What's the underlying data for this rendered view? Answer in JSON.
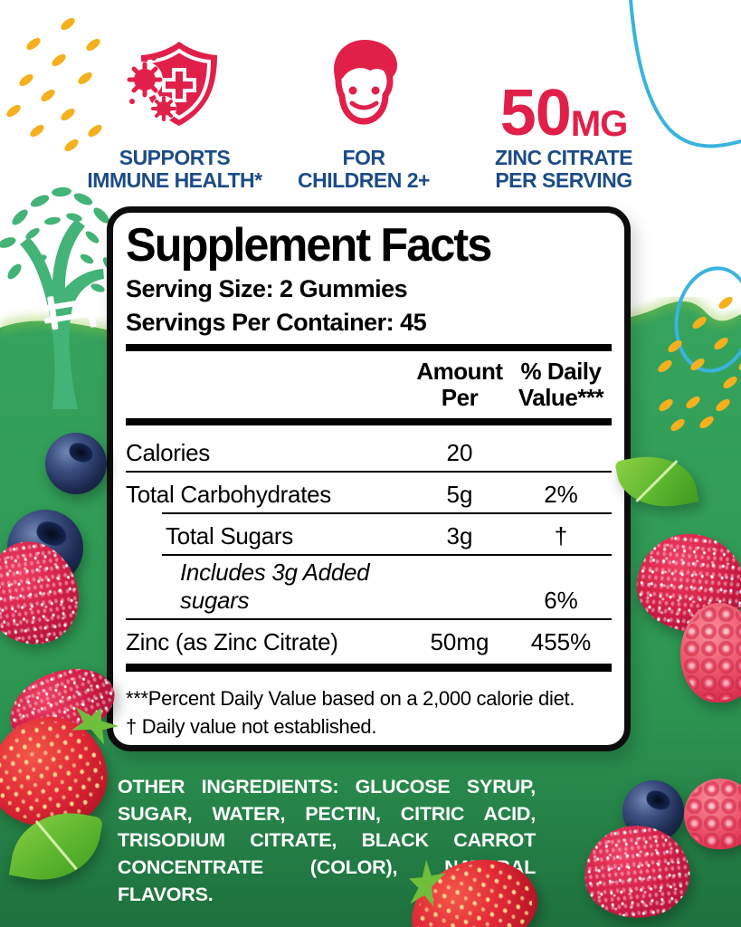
{
  "product_banner": {
    "badges": [
      {
        "icon": "immune-shield-icon",
        "line1": "SUPPORTS",
        "line2": "IMMUNE HEALTH*"
      },
      {
        "icon": "child-face-icon",
        "line1": "FOR",
        "line2": "CHILDREN 2+"
      },
      {
        "icon": "dose-text",
        "dose_value": "50",
        "dose_unit": "MG",
        "line1": "ZINC CITRATE",
        "line2": "PER SERVING"
      }
    ]
  },
  "supplement_facts": {
    "title": "Supplement Facts",
    "serving_size": "Serving Size: 2 Gummies",
    "servings_per_container": "Servings Per Container: 45",
    "columns": {
      "amount": "Amount Per",
      "daily_value": "% Daily Value***"
    },
    "rows": [
      {
        "name": "Calories",
        "amount": "20",
        "daily_value": "",
        "indent": 0,
        "italic": false,
        "rule_below": "full"
      },
      {
        "name": "Total Carbohydrates",
        "amount": "5g",
        "daily_value": "2%",
        "indent": 0,
        "italic": false,
        "rule_below": "indented"
      },
      {
        "name": "Total Sugars",
        "amount": "3g",
        "daily_value": "†",
        "indent": 1,
        "italic": false,
        "rule_below": "indented"
      },
      {
        "name": "Includes 3g Added sugars",
        "amount": "",
        "daily_value": "6%",
        "indent": 2,
        "italic": true,
        "rule_below": "full"
      },
      {
        "name": "Zinc (as Zinc Citrate)",
        "amount": "50mg",
        "daily_value": "455%",
        "indent": 0,
        "italic": false,
        "rule_below": "none"
      }
    ],
    "footnotes": [
      "***Percent Daily Value based on a 2,000 calorie diet.",
      "† Daily value not established."
    ]
  },
  "other_ingredients": {
    "label": "OTHER INGREDIENTS:",
    "text": " GLUCOSE SYRUP, SUGAR, WATER, PECTIN, CITRIC ACID, TRISODIUM CITRATE, BLACK CARROT CONCENTRATE (COLOR), NATURAL FLAVORS."
  },
  "colors": {
    "accent_red": "#E1204A",
    "navy_blue": "#1C4C87",
    "background_green": "#2F9B55",
    "hill_green": "#43B377",
    "dot_yellow": "#F5B01E",
    "line_blue": "#39B4DE",
    "panel_border_black": "#0D0D0D",
    "text_white": "#FFFFFF"
  }
}
